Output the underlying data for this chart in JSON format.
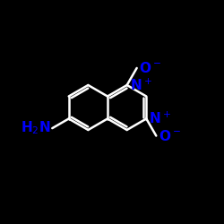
{
  "bg_color": "#000000",
  "bond_color": "#ffffff",
  "blue": "#0000ff",
  "red_color": "#ff0000",
  "bw": 1.8,
  "BL": 1.0,
  "font_size": 11,
  "xlim": [
    0,
    10
  ],
  "ylim": [
    0,
    10
  ],
  "figsize": [
    2.5,
    2.5
  ],
  "dpi": 100
}
